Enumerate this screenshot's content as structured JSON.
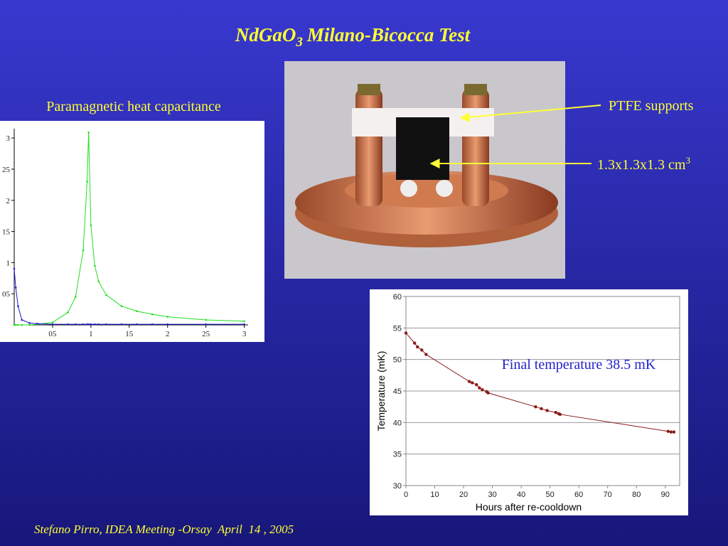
{
  "title_parts": [
    "NdGaO",
    "3",
    "Milano-Bicocca Test"
  ],
  "labels": {
    "left": "Paramagnetic heat capacitance",
    "ptfe": "PTFE supports",
    "size": "1.3x1.3x1.3 cm",
    "size_sup": "3",
    "final": "Final temperature 38.5 mK"
  },
  "footer": "Stefano Pirro, IDEA Meeting -Orsay  April  14 , 2005",
  "chart_data": [
    {
      "type": "line",
      "x": [
        0,
        0.02,
        0.05,
        0.1,
        0.2,
        0.3,
        0.5,
        0.7,
        0.8,
        0.9,
        0.95,
        0.97,
        1.0,
        1.05,
        1.1,
        1.2,
        1.4,
        1.6,
        1.8,
        2.0,
        2.5,
        3.0
      ],
      "series": [
        {
          "color": "#22dd22",
          "values": [
            0,
            0,
            0,
            0,
            0,
            0.01,
            0.04,
            0.2,
            0.45,
            1.2,
            2.3,
            3.09,
            1.6,
            0.95,
            0.7,
            0.48,
            0.3,
            0.22,
            0.17,
            0.13,
            0.08,
            0.06
          ]
        },
        {
          "color": "#1a1acc",
          "values": [
            0.9,
            0.6,
            0.3,
            0.08,
            0.03,
            0.02,
            0.01,
            0.01,
            0.01,
            0.01,
            0.01,
            0.01,
            0.01,
            0.01,
            0.01,
            0.01,
            0.01,
            0.01,
            0.01,
            0.01,
            0.01,
            0.01
          ]
        }
      ],
      "xlim": [
        0,
        3.05
      ],
      "ylim": [
        0,
        3.15
      ],
      "xticks": [
        {
          "value": 0.5,
          "label": "05"
        },
        1,
        {
          "value": 1.5,
          "label": "15"
        },
        2,
        {
          "value": 2.5,
          "label": "25"
        },
        3
      ],
      "yticks": [
        {
          "value": 0.5,
          "label": "05"
        },
        1,
        {
          "value": 1.5,
          "label": "15"
        },
        2,
        {
          "value": 2.5,
          "label": "25"
        },
        3
      ],
      "grid": false
    },
    {
      "type": "line",
      "x_label": "Hours after re-cooldown",
      "y_label": "Temperature (mK)",
      "x": [
        0,
        3,
        4,
        5.5,
        7,
        22,
        23,
        24.5,
        25.5,
        26.5,
        28,
        28.5,
        45,
        47,
        49,
        52,
        53,
        53.5,
        91,
        92,
        93
      ],
      "series": [
        {
          "color": "#8b1a1a",
          "values": [
            54.2,
            52.6,
            52,
            51.5,
            50.8,
            46.5,
            46.3,
            46,
            45.5,
            45.2,
            44.9,
            44.7,
            42.5,
            42.2,
            41.9,
            41.6,
            41.4,
            41.3,
            38.6,
            38.5,
            38.5
          ]
        }
      ],
      "xlim": [
        0,
        95
      ],
      "ylim": [
        30,
        60
      ],
      "xticks": [
        0,
        10,
        20,
        30,
        40,
        50,
        60,
        70,
        80,
        90
      ],
      "yticks": [
        30,
        35,
        40,
        45,
        50,
        55,
        60
      ],
      "grid": true
    }
  ]
}
